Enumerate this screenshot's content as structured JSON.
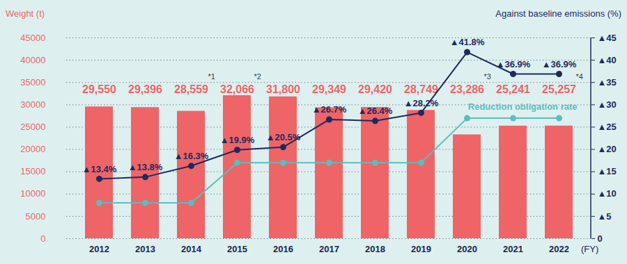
{
  "chart_data": {
    "type": "bar",
    "categories": [
      "2012",
      "2013",
      "2014",
      "2015",
      "2016",
      "2017",
      "2018",
      "2019",
      "2020",
      "2021",
      "2022"
    ],
    "xlabel": "(FY)",
    "ylabel": "Weight (t)",
    "y2label": "Against baseline emissions (%)",
    "ylim": [
      0,
      45000
    ],
    "yticks": [
      0,
      5000,
      10000,
      15000,
      20000,
      25000,
      30000,
      35000,
      40000,
      45000
    ],
    "y2lim": [
      0,
      45
    ],
    "y2ticks": [
      0,
      {
        "value": 5,
        "label": "▲5"
      },
      {
        "value": 10,
        "label": "▲10"
      },
      {
        "value": 15,
        "label": "▲15"
      },
      {
        "value": 20,
        "label": "▲20"
      },
      {
        "value": 25,
        "label": "▲25"
      },
      {
        "value": 30,
        "label": "▲30"
      },
      {
        "value": 35,
        "label": "▲35"
      },
      {
        "value": 40,
        "label": "▲40"
      },
      {
        "value": 45,
        "label": "▲45"
      }
    ],
    "grid": true,
    "series": [
      {
        "type": "bar",
        "color": "#ef6467",
        "data_labels": true,
        "values": [
          29550,
          29396,
          28559,
          32066,
          31800,
          29349,
          29420,
          28749,
          23286,
          25241,
          25257
        ],
        "value_labels": [
          "29,550",
          "29,396",
          "28,559",
          "32,066",
          "31,800",
          "29,349",
          "29,420",
          "28,749",
          "23,286",
          "25,241",
          "25,257"
        ]
      },
      {
        "type": "line",
        "axis": "y2",
        "color": "#1e2a5e",
        "marker": "circle",
        "data_labels": true,
        "values": [
          13.4,
          13.8,
          16.3,
          19.9,
          20.5,
          26.7,
          26.4,
          28.2,
          41.8,
          36.9,
          36.9
        ],
        "value_labels": [
          "▲13.4%",
          "▲13.8%",
          "▲16.3%",
          "▲19.9%",
          "▲20.5%",
          "▲26.7%",
          "▲26.4%",
          "▲28.2%",
          "▲41.8%",
          "▲36.9%",
          "▲36.9%"
        ]
      },
      {
        "type": "line",
        "axis": "y2",
        "name": "Reduction obligation rate",
        "color": "#5cbdbd",
        "marker": "circle",
        "values": [
          8,
          8,
          8,
          17,
          17,
          17,
          17,
          17,
          27,
          27,
          27
        ]
      }
    ],
    "annotations": [
      {
        "category": "2014",
        "text": "*1"
      },
      {
        "category": "2015",
        "text": "*2"
      },
      {
        "category": "2020",
        "text": "*3"
      },
      {
        "category": "2022",
        "text": "*4"
      }
    ]
  }
}
